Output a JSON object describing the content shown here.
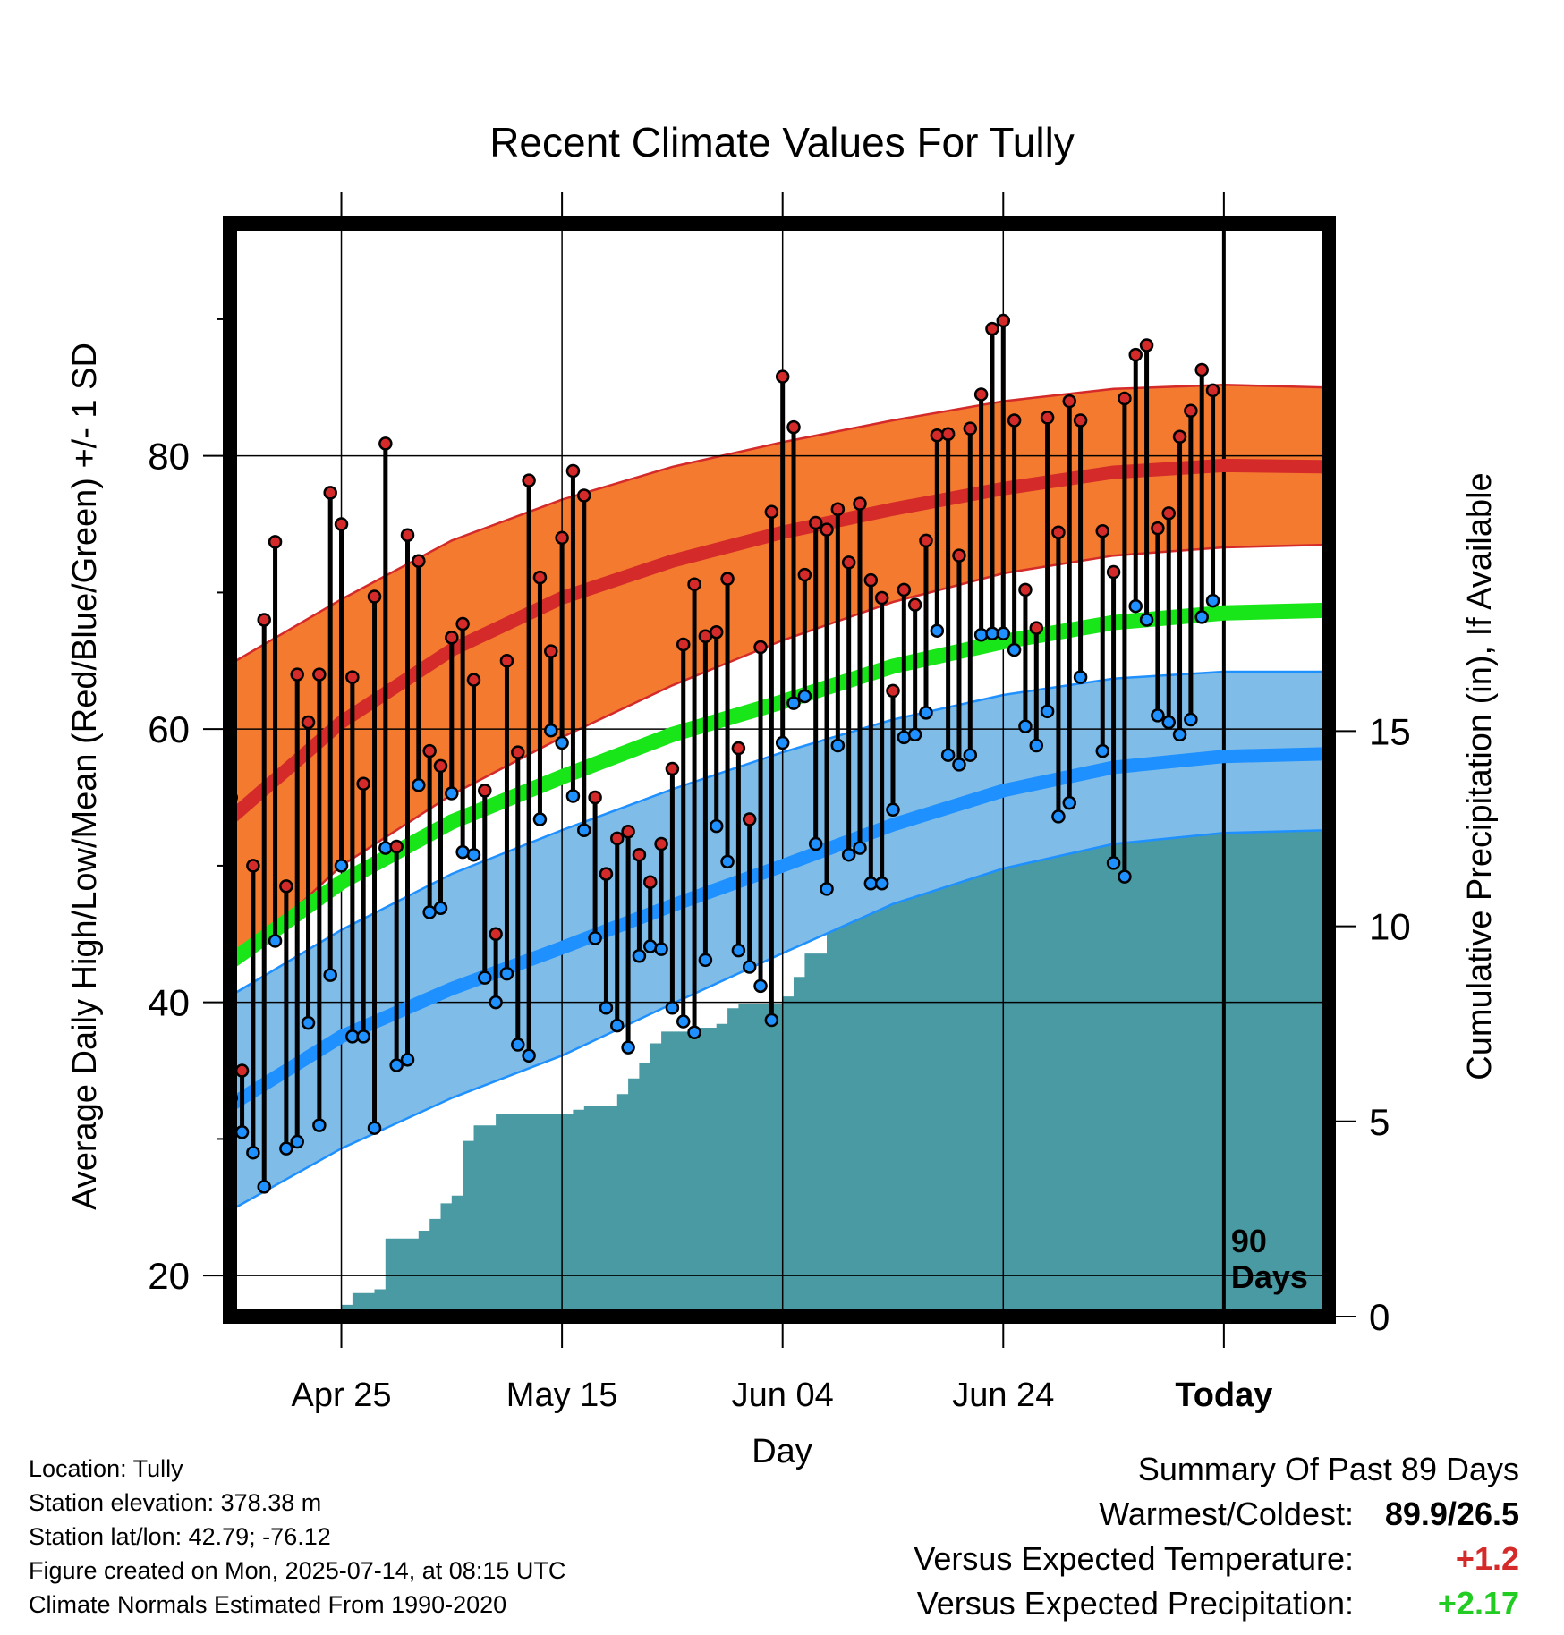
{
  "chart_data": {
    "type": "line",
    "title": "Recent Climate Values For Tully",
    "xlabel": "Day",
    "ylabel": "Average Daily High/Low/Mean (Red/Blue/Green) +/- 1 SD",
    "y2label": "Cumulative Precipitation (in), If Available",
    "ylim": [
      17,
      97
    ],
    "y_ticks": [
      "20",
      "40",
      "60",
      "80"
    ],
    "y2lim": [
      0,
      28
    ],
    "y2_ticks": [
      "0",
      "5",
      "10",
      "15"
    ],
    "x_ticks": [
      {
        "day": 10,
        "label": "Apr 25"
      },
      {
        "day": 30,
        "label": "May 15"
      },
      {
        "day": 50,
        "label": "Jun 04"
      },
      {
        "day": 70,
        "label": "Jun 24"
      },
      {
        "day": 90,
        "label": "Today"
      }
    ],
    "xlim": [
      -0.1,
      99.5
    ],
    "today_marker": {
      "day": 90,
      "label_line1": "90",
      "label_line2": "Days"
    },
    "grid": true,
    "colors": {
      "high_band": "#f47a2f",
      "high_line": "#d42a2a",
      "high_dot": "#d42a2a",
      "low_band": "#7fbde8",
      "low_line": "#1e90ff",
      "low_dot": "#1e90ff",
      "mean_line": "#19e619",
      "precip": "#4a9aa3"
    },
    "normals": {
      "days": [
        0,
        10,
        20,
        30,
        40,
        50,
        60,
        70,
        80,
        90,
        99.5
      ],
      "high_mean": [
        53.5,
        60.5,
        65.8,
        69.6,
        72.3,
        74.4,
        76.1,
        77.6,
        78.8,
        79.3,
        79.2
      ],
      "high_upper": [
        64.8,
        69.5,
        73.8,
        76.8,
        79.2,
        81.0,
        82.6,
        84.0,
        84.9,
        85.2,
        85.0
      ],
      "high_lower": [
        42.5,
        50.0,
        55.2,
        59.4,
        63.2,
        66.5,
        69.3,
        71.4,
        72.7,
        73.3,
        73.5
      ],
      "mean_mean": [
        43.0,
        48.8,
        53.2,
        56.5,
        59.6,
        62.0,
        64.6,
        66.4,
        67.8,
        68.5,
        68.7
      ],
      "low_mean": [
        32.5,
        37.5,
        41.0,
        44.0,
        47.1,
        50.0,
        53.0,
        55.5,
        57.2,
        58.0,
        58.2
      ],
      "low_upper": [
        40.5,
        45.3,
        49.4,
        52.6,
        55.6,
        58.3,
        60.7,
        62.5,
        63.7,
        64.2,
        64.2
      ],
      "low_lower": [
        24.8,
        29.3,
        33.0,
        36.1,
        39.9,
        43.6,
        47.2,
        49.8,
        51.6,
        52.4,
        52.6
      ]
    },
    "daily": [
      {
        "day": 0,
        "high": 55,
        "low": 33
      },
      {
        "day": 1,
        "high": 35,
        "low": 30.5
      },
      {
        "day": 2,
        "high": 50,
        "low": 29
      },
      {
        "day": 3,
        "high": 68,
        "low": 26.5
      },
      {
        "day": 4,
        "high": 73.7,
        "low": 44.5
      },
      {
        "day": 5,
        "high": 48.5,
        "low": 29.3
      },
      {
        "day": 6,
        "high": 64,
        "low": 29.8
      },
      {
        "day": 7,
        "high": 60.5,
        "low": 38.5
      },
      {
        "day": 8,
        "high": 64,
        "low": 31
      },
      {
        "day": 9,
        "high": 77.3,
        "low": 42
      },
      {
        "day": 10,
        "high": 75,
        "low": 50
      },
      {
        "day": 11,
        "high": 63.8,
        "low": 37.5
      },
      {
        "day": 12,
        "high": 56,
        "low": 37.5
      },
      {
        "day": 13,
        "high": 69.7,
        "low": 30.8
      },
      {
        "day": 14,
        "high": 80.9,
        "low": 51.3
      },
      {
        "day": 15,
        "high": 51.4,
        "low": 35.4
      },
      {
        "day": 16,
        "high": 74.2,
        "low": 35.8
      },
      {
        "day": 17,
        "high": 72.3,
        "low": 55.9
      },
      {
        "day": 18,
        "high": 58.4,
        "low": 46.6
      },
      {
        "day": 19,
        "high": 57.3,
        "low": 46.9
      },
      {
        "day": 20,
        "high": 66.7,
        "low": 55.3
      },
      {
        "day": 21,
        "high": 67.7,
        "low": 51
      },
      {
        "day": 22,
        "high": 63.6,
        "low": 50.8
      },
      {
        "day": 23,
        "high": 55.5,
        "low": 41.8
      },
      {
        "day": 24,
        "high": 45,
        "low": 40
      },
      {
        "day": 25,
        "high": 65,
        "low": 42.1
      },
      {
        "day": 26,
        "high": 58.3,
        "low": 36.9
      },
      {
        "day": 27,
        "high": 78.2,
        "low": 36.1
      },
      {
        "day": 28,
        "high": 71.1,
        "low": 53.4
      },
      {
        "day": 29,
        "high": 65.7,
        "low": 59.9
      },
      {
        "day": 30,
        "high": 74,
        "low": 59
      },
      {
        "day": 31,
        "high": 78.9,
        "low": 55.1
      },
      {
        "day": 32,
        "high": 77.1,
        "low": 52.6
      },
      {
        "day": 33,
        "high": 55,
        "low": 44.7
      },
      {
        "day": 34,
        "high": 49.4,
        "low": 39.6
      },
      {
        "day": 35,
        "high": 52,
        "low": 38.3
      },
      {
        "day": 36,
        "high": 52.5,
        "low": 36.7
      },
      {
        "day": 37,
        "high": 50.8,
        "low": 43.4
      },
      {
        "day": 38,
        "high": 48.8,
        "low": 44.1
      },
      {
        "day": 39,
        "high": 51.6,
        "low": 43.9
      },
      {
        "day": 40,
        "high": 57.1,
        "low": 39.6
      },
      {
        "day": 41,
        "high": 66.2,
        "low": 38.6
      },
      {
        "day": 42,
        "high": 70.6,
        "low": 37.8
      },
      {
        "day": 43,
        "high": 66.8,
        "low": 43.1
      },
      {
        "day": 44,
        "high": 67.1,
        "low": 52.9
      },
      {
        "day": 45,
        "high": 71,
        "low": 50.3
      },
      {
        "day": 46,
        "high": 58.6,
        "low": 43.8
      },
      {
        "day": 47,
        "high": 53.4,
        "low": 42.6
      },
      {
        "day": 48,
        "high": 66,
        "low": 41.2
      },
      {
        "day": 49,
        "high": 75.9,
        "low": 38.7
      },
      {
        "day": 50,
        "high": 85.8,
        "low": 59
      },
      {
        "day": 51,
        "high": 82.1,
        "low": 61.9
      },
      {
        "day": 52,
        "high": 71.3,
        "low": 62.4
      },
      {
        "day": 53,
        "high": 75.1,
        "low": 51.6
      },
      {
        "day": 54,
        "high": 74.6,
        "low": 48.3
      },
      {
        "day": 55,
        "high": 76.1,
        "low": 58.8
      },
      {
        "day": 56,
        "high": 72.2,
        "low": 50.8
      },
      {
        "day": 57,
        "high": 76.5,
        "low": 51.3
      },
      {
        "day": 58,
        "high": 70.9,
        "low": 48.7
      },
      {
        "day": 59,
        "high": 69.6,
        "low": 48.7
      },
      {
        "day": 60,
        "high": 62.8,
        "low": 54.1
      },
      {
        "day": 61,
        "high": 70.2,
        "low": 59.4
      },
      {
        "day": 62,
        "high": 69.1,
        "low": 59.6
      },
      {
        "day": 63,
        "high": 73.8,
        "low": 61.2
      },
      {
        "day": 64,
        "high": 81.5,
        "low": 67.2
      },
      {
        "day": 65,
        "high": 81.6,
        "low": 58.1
      },
      {
        "day": 66,
        "high": 72.7,
        "low": 57.4
      },
      {
        "day": 67,
        "high": 82,
        "low": 58.1
      },
      {
        "day": 68,
        "high": 84.5,
        "low": 66.9
      },
      {
        "day": 69,
        "high": 89.3,
        "low": 67
      },
      {
        "day": 70,
        "high": 89.9,
        "low": 67
      },
      {
        "day": 71,
        "high": 82.6,
        "low": 65.8
      },
      {
        "day": 72,
        "high": 70.2,
        "low": 60.2
      },
      {
        "day": 73,
        "high": 67.4,
        "low": 58.8
      },
      {
        "day": 74,
        "high": 82.8,
        "low": 61.3
      },
      {
        "day": 75,
        "high": 74.4,
        "low": 53.6
      },
      {
        "day": 76,
        "high": 84,
        "low": 54.6
      },
      {
        "day": 77,
        "high": 82.6,
        "low": 63.8
      },
      {
        "day": 79,
        "high": 74.5,
        "low": 58.4
      },
      {
        "day": 80,
        "high": 71.5,
        "low": 50.2
      },
      {
        "day": 81,
        "high": 84.2,
        "low": 49.2
      },
      {
        "day": 82,
        "high": 87.4,
        "low": 69
      },
      {
        "day": 83,
        "high": 88.1,
        "low": 68
      },
      {
        "day": 84,
        "high": 74.7,
        "low": 61
      },
      {
        "day": 85,
        "high": 75.8,
        "low": 60.5
      },
      {
        "day": 86,
        "high": 81.4,
        "low": 59.6
      },
      {
        "day": 87,
        "high": 83.3,
        "low": 60.7
      },
      {
        "day": 88,
        "high": 86.3,
        "low": 68.2
      },
      {
        "day": 89,
        "high": 84.8,
        "low": 69.4
      }
    ],
    "precip": {
      "days": [
        0,
        4,
        6,
        8,
        10,
        11,
        13,
        14,
        16,
        17,
        18,
        19,
        20,
        21,
        22,
        23,
        24,
        25,
        27,
        29,
        30,
        31,
        32,
        33,
        34,
        35,
        36,
        37,
        38,
        39,
        40,
        41,
        42,
        43,
        44,
        45,
        46,
        47,
        48,
        49,
        50,
        51,
        52,
        53,
        54,
        55,
        56,
        57,
        58,
        59,
        60,
        61,
        62,
        63,
        64,
        65,
        66,
        67,
        68,
        69,
        70,
        71,
        72,
        73,
        74,
        75,
        76,
        77,
        78,
        79,
        80,
        81,
        82,
        83,
        84,
        85,
        86,
        87,
        88,
        89,
        90,
        95,
        99.5
      ],
      "values": [
        0,
        0.1,
        0.2,
        0.2,
        0.3,
        0.6,
        0.7,
        2.0,
        2.0,
        2.2,
        2.5,
        2.9,
        3.1,
        4.5,
        4.9,
        4.9,
        5.2,
        5.2,
        5.2,
        5.2,
        5.2,
        5.3,
        5.4,
        5.4,
        5.4,
        5.7,
        6.1,
        6.5,
        7.0,
        7.3,
        7.3,
        7.3,
        7.4,
        7.4,
        7.5,
        7.9,
        8.0,
        8.0,
        8.0,
        8.0,
        8.2,
        8.7,
        9.3,
        9.3,
        10.6,
        11.0,
        11.0,
        11.2,
        11.3,
        11.3,
        11.3,
        11.3,
        11.4,
        11.7,
        11.7,
        11.9,
        11.9,
        12.3,
        12.3,
        12.5,
        12.8,
        12.8,
        12.8,
        12.9,
        12.9,
        12.9,
        13.2,
        13.2,
        13.2,
        13.2,
        13.6,
        13.6,
        13.6,
        13.6,
        13.6,
        13.6,
        14.2,
        14.2,
        14.2,
        14.6,
        14.6,
        14.6,
        14.6
      ]
    }
  },
  "footer": {
    "location": "Location: Tully",
    "elevation": "Station elevation: 378.38 m",
    "latlon": "Station lat/lon: 42.79; -76.12",
    "created": "Figure created on Mon, 2025-07-14, at 08:15 UTC",
    "normals": "Climate Normals Estimated From 1990-2020"
  },
  "summary": {
    "title": "Summary Of Past 89 Days",
    "warmest_label": "Warmest/Coldest:",
    "warmest_value": "89.9/26.5",
    "temp_label": "Versus Expected Temperature:",
    "temp_value": "+1.2",
    "temp_color": "#d42a2a",
    "precip_label": "Versus Expected Precipitation:",
    "precip_value": "+2.17",
    "precip_color": "#22cc22"
  }
}
